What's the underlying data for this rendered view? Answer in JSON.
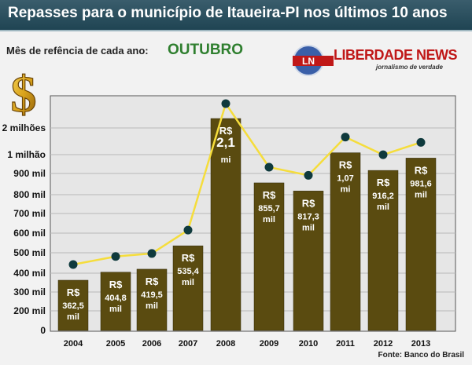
{
  "header": {
    "title": "Repasses para o município de Itaueira-PI nos últimos 10 anos",
    "subtitle": "Mês de refência de cada ano:",
    "month": "OUTUBRO"
  },
  "logo": {
    "initials": "LN",
    "name": "LIBERDADE NEWS",
    "tagline": "jornalismo de verdade"
  },
  "icons": {
    "money": "dollar-sign-icon"
  },
  "footer": {
    "source": "Fonte: Banco do Brasil"
  },
  "colors": {
    "bar": "#5a4b10",
    "line": "#f5dd3c",
    "marker": "#0f3a3d",
    "title_bg": "#2b5060",
    "month": "#2f7f2f",
    "logo_red": "#c01818"
  },
  "chart_data": {
    "type": "bar",
    "categories": [
      "2004",
      "2005",
      "2006",
      "2007",
      "2008",
      "2009",
      "2010",
      "2011",
      "2012",
      "2013"
    ],
    "values": [
      362.5,
      404.8,
      419.5,
      535.4,
      2100,
      855.7,
      817.3,
      1070,
      916.2,
      981.6
    ],
    "value_units": "mil R$",
    "overlay": "line with markers over bar tops",
    "bar_labels": [
      [
        "R$",
        "362,5",
        "mil"
      ],
      [
        "R$",
        "404,8",
        "mil"
      ],
      [
        "R$",
        "419,5",
        "mil"
      ],
      [
        "R$",
        "535,4",
        "mil"
      ],
      [
        "R$",
        "2,1",
        "mi"
      ],
      [
        "R$",
        "855,7",
        "mil"
      ],
      [
        "R$",
        "817,3",
        "mil"
      ],
      [
        "R$",
        "1,07",
        "mi"
      ],
      [
        "R$",
        "916,2",
        "mil"
      ],
      [
        "R$",
        "981,6",
        "mil"
      ]
    ],
    "y_tick_labels": [
      "0",
      "200 mil",
      "300 mil",
      "400 mil",
      "500 mil",
      "600 mil",
      "700 mil",
      "800 mil",
      "900 mil",
      "1 milhão",
      "2 milhões"
    ],
    "grid": true,
    "legend": "none"
  }
}
